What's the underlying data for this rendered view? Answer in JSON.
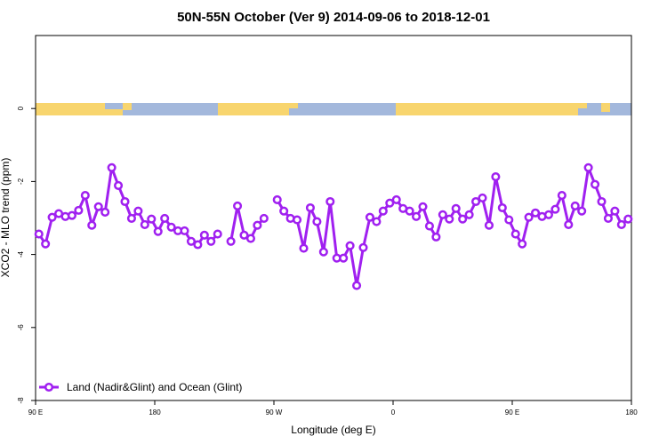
{
  "chart_data": {
    "type": "line",
    "title": "50N-55N October (Ver 9)   2014-09-06 to 2018-12-01",
    "x_label": "Longitude (deg E)",
    "y_label": "XCO2 - MLO trend (ppm)",
    "xlim": [
      90,
      540
    ],
    "ylim": [
      -8,
      2
    ],
    "xticks": [
      {
        "value": 90,
        "label": "90 E"
      },
      180,
      {
        "value": 270,
        "label": "90 W"
      },
      {
        "value": 360,
        "label": "0"
      },
      {
        "value": 450,
        "label": "90 E"
      },
      {
        "value": 540,
        "label": "180"
      }
    ],
    "yticks": [
      -8,
      -6,
      -4,
      -2,
      0
    ],
    "legend": "bottom-left",
    "x": [
      92.5,
      97.5,
      102.5,
      107.5,
      112.5,
      117.5,
      122.5,
      127.5,
      132.5,
      137.5,
      142.5,
      147.5,
      152.5,
      157.5,
      162.5,
      167.5,
      172.5,
      177.5,
      182.5,
      187.5,
      192.5,
      197.5,
      202.5,
      207.5,
      212.5,
      217.5,
      222.5,
      227.5,
      232.5,
      237.5,
      242.5,
      247.5,
      252.5,
      257.5,
      262.5,
      267.5,
      272.5,
      277.5,
      282.5,
      287.5,
      292.5,
      297.5,
      302.5,
      307.5,
      312.5,
      317.5,
      322.5,
      327.5,
      332.5,
      337.5,
      342.5,
      347.5,
      352.5,
      357.5,
      362.5,
      367.5,
      372.5,
      377.5,
      382.5,
      387.5,
      392.5,
      397.5,
      402.5,
      407.5,
      412.5,
      417.5,
      422.5,
      427.5,
      432.5,
      437.5,
      442.5,
      447.5,
      452.5,
      457.5,
      462.5,
      467.5,
      472.5,
      477.5,
      482.5,
      487.5,
      492.5,
      497.5,
      502.5,
      507.5,
      512.5,
      517.5,
      522.5,
      527.5,
      532.5,
      537.5
    ],
    "series": [
      {
        "name": "Land (Nadir&Glint) and Ocean (Glint)",
        "color": "#a020f0",
        "values": [
          -3.44,
          -3.71,
          -2.98,
          -2.88,
          -2.96,
          -2.93,
          -2.79,
          -2.38,
          -3.2,
          -2.69,
          -2.84,
          -1.62,
          -2.11,
          -2.55,
          -3.01,
          -2.81,
          -3.18,
          -3.03,
          -3.37,
          -3.01,
          -3.25,
          -3.35,
          -3.35,
          -3.64,
          -3.73,
          -3.47,
          -3.64,
          -3.44,
          null,
          -3.64,
          -2.67,
          -3.47,
          -3.56,
          -3.2,
          -3.01,
          null,
          -2.5,
          -2.81,
          -3.01,
          -3.05,
          -3.83,
          -2.72,
          -3.1,
          -3.93,
          -2.55,
          -4.1,
          -4.1,
          -3.76,
          -4.85,
          -3.81,
          -2.98,
          -3.1,
          -2.81,
          -2.59,
          -2.5,
          -2.74,
          -2.81,
          -2.96,
          -2.69,
          -3.22,
          -3.52,
          -2.91,
          -3.03,
          -2.74,
          -3.03,
          -2.91,
          -2.55,
          -2.45,
          -3.2,
          -1.87,
          -2.72,
          -3.05,
          -3.44,
          -3.71,
          -2.98,
          -2.86,
          -2.96,
          -2.91,
          -2.76,
          -2.38,
          -3.18,
          -2.67,
          -2.81,
          -1.62,
          -2.08,
          -2.55,
          -3.01,
          -2.81,
          -3.18,
          -3.03
        ]
      }
    ]
  }
}
